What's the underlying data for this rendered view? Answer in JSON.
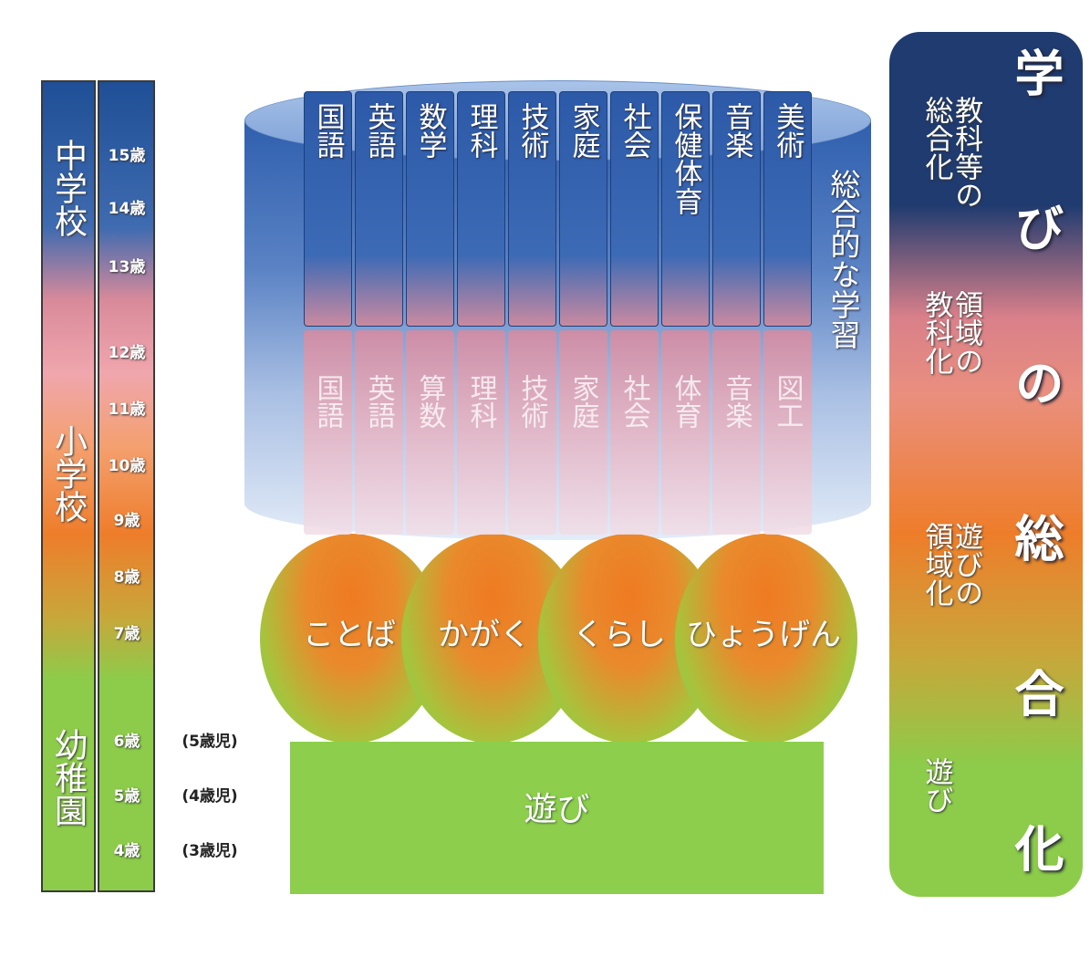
{
  "school_levels": [
    "中学校",
    "小学校",
    "幼稚園"
  ],
  "ages": [
    "15歳",
    "14歳",
    "13歳",
    "12歳",
    "11歳",
    "10歳",
    "9歳",
    "8歳",
    "7歳",
    "6歳",
    "5歳",
    "4歳"
  ],
  "kindergarten_ages": [
    "(5歳児)",
    "(4歳児)",
    "(3歳児)"
  ],
  "junior_subjects": [
    "国語",
    "英語",
    "数学",
    "理科",
    "技術",
    "家庭",
    "社会",
    "保健体育",
    "音楽",
    "美術"
  ],
  "elementary_subjects": [
    "国語",
    "英語",
    "算数",
    "理科",
    "技術",
    "家庭",
    "社会",
    "体育",
    "音楽",
    "図工"
  ],
  "integrated_study": "総合的な学習",
  "domains": [
    "ことば",
    "かがく",
    "くらし",
    "ひょうげん"
  ],
  "play": "遊び",
  "panel": {
    "title": "学びの総合化",
    "stages": [
      [
        "教科等の",
        "総合化"
      ],
      [
        "領域の",
        "教科化"
      ],
      [
        "遊びの",
        "領域化"
      ],
      [
        "遊び"
      ]
    ]
  }
}
